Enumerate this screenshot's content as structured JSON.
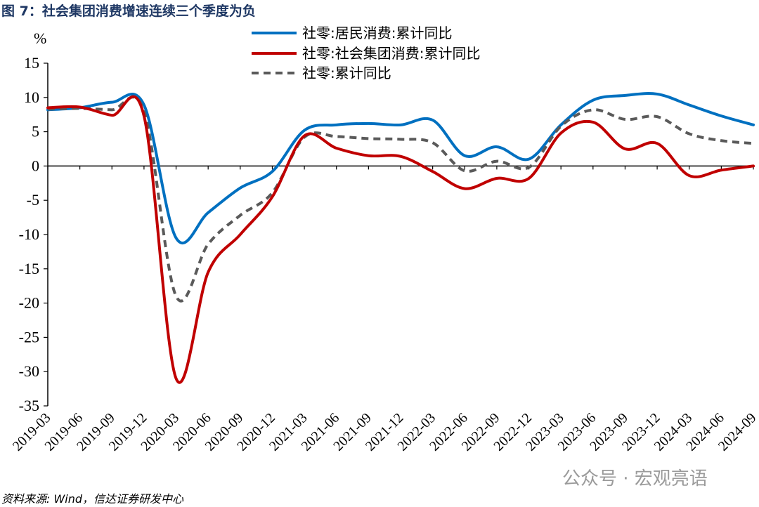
{
  "figure": {
    "title": "图 7：社会集团消费增速连续三个季度为负",
    "source": "资料来源: Wind，信达证券研发中心",
    "watermark": "公众号 · 宏观亮语"
  },
  "chart_data": {
    "type": "line",
    "title": "图 7：社会集团消费增速连续三个季度为负",
    "ylabel": "%",
    "xlabel": "",
    "ylim": [
      -35,
      15
    ],
    "yticks": [
      15,
      10,
      5,
      0,
      -5,
      -10,
      -15,
      -20,
      -25,
      -30,
      -35
    ],
    "x": [
      "2019-03",
      "2019-06",
      "2019-09",
      "2019-12",
      "2020-03",
      "2020-06",
      "2020-09",
      "2020-12",
      "2021-03",
      "2021-06",
      "2021-09",
      "2021-12",
      "2022-03",
      "2022-06",
      "2022-09",
      "2022-12",
      "2023-03",
      "2023-06",
      "2023-09",
      "2023-12",
      "2024-03",
      "2024-06",
      "2024-09"
    ],
    "xtick_labels": [
      "2019-03",
      "2019-06",
      "2019-09",
      "2019-12",
      "2020-03",
      "2020-06",
      "2020-09",
      "2020-12",
      "2021-03",
      "2021-06",
      "2021-09",
      "2021-12",
      "2022-03",
      "2022-06",
      "2022-09",
      "2022-12",
      "2023-03",
      "2023-06",
      "2023-09",
      "2023-12",
      "2024-03",
      "2024-06",
      "2024-09"
    ],
    "legend_position": "top-right",
    "series": [
      {
        "name": "社零:居民消费:累计同比",
        "color": "#0070c0",
        "style": "solid",
        "values": [
          8.2,
          8.5,
          9.3,
          8.9,
          -10.5,
          -6.8,
          -3.2,
          -0.8,
          5.2,
          6.0,
          6.2,
          6.0,
          6.7,
          1.5,
          2.8,
          1.0,
          6.0,
          9.6,
          10.3,
          10.5,
          8.9,
          7.3,
          6.0
        ]
      },
      {
        "name": "社零:社会集团消费:累计同比",
        "color": "#c00000",
        "style": "solid",
        "values": [
          8.5,
          8.6,
          7.4,
          7.3,
          -31.0,
          -15.5,
          -10.0,
          -4.5,
          4.4,
          2.6,
          1.5,
          1.4,
          -0.8,
          -3.3,
          -1.8,
          -1.8,
          4.8,
          6.4,
          2.5,
          3.3,
          -1.4,
          -0.6,
          0.0
        ]
      },
      {
        "name": "社零:累计同比",
        "color": "#5a5a5a",
        "style": "dashed",
        "values": [
          8.3,
          8.4,
          8.2,
          8.0,
          -19.0,
          -11.4,
          -7.2,
          -3.9,
          4.2,
          4.3,
          4.0,
          3.9,
          3.4,
          -0.7,
          0.7,
          -0.2,
          5.8,
          8.2,
          6.8,
          7.2,
          4.7,
          3.7,
          3.3
        ]
      }
    ]
  }
}
